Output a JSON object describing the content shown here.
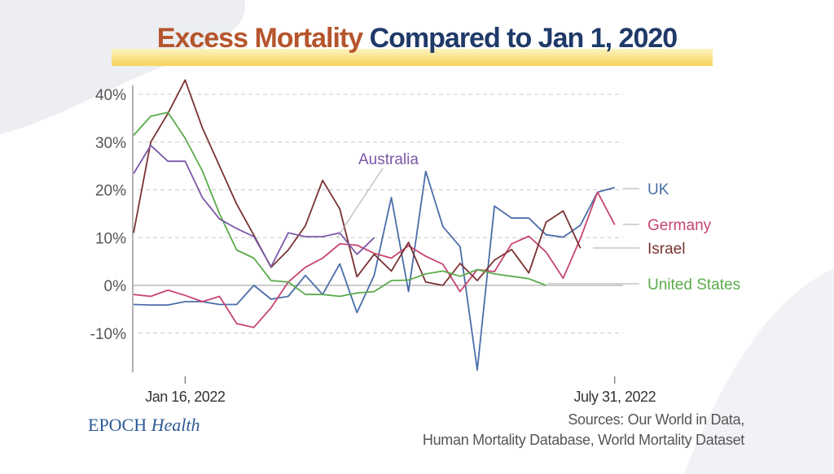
{
  "title": {
    "part1": "Excess Mortality",
    "part2": "Compared to Jan 1, 2020"
  },
  "branding": {
    "logo_a": "EPOCH",
    "logo_b": "Health"
  },
  "sources": {
    "line1": "Sources: Our World in Data,",
    "line2": "Human Mortality Database, World Mortality Dataset"
  },
  "chart_data": {
    "type": "line",
    "title": "Excess Mortality Compared to Jan 1, 2020",
    "xlabel": "",
    "ylabel": "",
    "ylim": [
      -18,
      44
    ],
    "yticks": [
      -10,
      0,
      10,
      20,
      30,
      40
    ],
    "ytick_labels": [
      "-10%",
      "0%",
      "10%",
      "20%",
      "30%",
      "40%"
    ],
    "x_count": 29,
    "xtick_labels": [
      {
        "index": 3,
        "label": "Jan 16, 2022"
      },
      {
        "index": 28,
        "label": "July 31, 2022"
      }
    ],
    "grid": true,
    "series": [
      {
        "name": "UK",
        "color": "#4a6ea8",
        "values": [
          -4,
          -4.1,
          -4.1,
          -3.4,
          -3.4,
          -4,
          -4,
          0,
          -2.9,
          -2.3,
          2.1,
          -1.9,
          4.5,
          -5.7,
          2.1,
          18.4,
          -1.3,
          23.9,
          12.3,
          8.1,
          -17.7,
          16.6,
          14.1,
          14.1,
          10.6,
          10.1,
          12.6,
          19.5,
          20.5
        ]
      },
      {
        "name": "Germany",
        "color": "#c8456f",
        "values": [
          -1.9,
          -2.3,
          -1,
          -2.1,
          -3.4,
          -2.3,
          -8,
          -8.8,
          -4.7,
          0.7,
          3.8,
          5.7,
          8.7,
          8.4,
          6.7,
          5.7,
          8.3,
          6.1,
          4.4,
          -1.3,
          3.3,
          2.9,
          8.7,
          10.3,
          7,
          1.5,
          9.8,
          19.5,
          12.7
        ]
      },
      {
        "name": "Israel",
        "color": "#7a3232",
        "values": [
          11,
          30,
          36,
          43,
          33,
          25,
          17,
          10.5,
          3.8,
          7.4,
          12.5,
          22,
          16,
          1.8,
          6.5,
          3,
          9,
          0.7,
          0,
          4.6,
          1,
          5.3,
          7.5,
          2.6,
          13.2,
          15.6,
          7.8
        ]
      },
      {
        "name": "United States",
        "color": "#5aab4b",
        "values": [
          31.4,
          35.4,
          36.2,
          30.8,
          24,
          15,
          7.4,
          5.7,
          1,
          0.7,
          -1.9,
          -1.9,
          -2.3,
          -1.6,
          -1.3,
          1,
          1.1,
          2.4,
          3,
          1.9,
          3.3,
          2.4,
          1.9,
          1.4,
          0
        ]
      },
      {
        "name": "Australia",
        "color": "#7b58a8",
        "values": [
          23.4,
          29.3,
          26,
          26,
          18.4,
          13.9,
          11.9,
          10.2,
          3.9,
          11,
          10.2,
          10.2,
          11,
          6.5,
          10
        ]
      }
    ]
  }
}
